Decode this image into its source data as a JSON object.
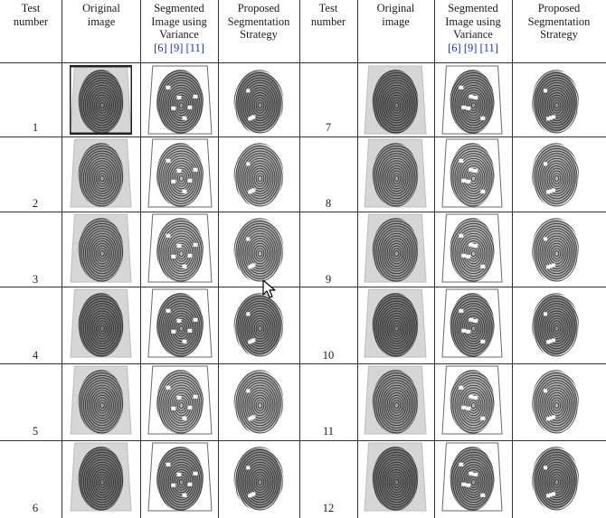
{
  "headers": {
    "test": [
      "Test",
      "number"
    ],
    "original": [
      "Original",
      "image"
    ],
    "segmented": [
      "Segmented",
      "Image using",
      "Variance"
    ],
    "refs": [
      "[6]",
      "[9]",
      "[11]"
    ],
    "proposed": [
      "Proposed",
      "Segmentation",
      "Strategy"
    ]
  },
  "rows": [
    {
      "left": "1",
      "right": "7"
    },
    {
      "left": "2",
      "right": "8"
    },
    {
      "left": "3",
      "right": "9"
    },
    {
      "left": "4",
      "right": "10"
    },
    {
      "left": "5",
      "right": "11"
    },
    {
      "left": "6",
      "right": "12"
    }
  ],
  "icons": {
    "cursor": "mouse-pointer-icon",
    "fingerprint": "fingerprint-icon"
  }
}
